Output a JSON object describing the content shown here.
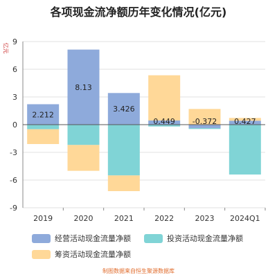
{
  "chart_data": {
    "type": "bar",
    "stacked": true,
    "title": "各项现金流净额历年变化情况(亿元)",
    "ylabel": "亿元",
    "categories": [
      "2019",
      "2020",
      "2021",
      "2022",
      "2023",
      "2024Q1"
    ],
    "ylim": [
      -9,
      9
    ],
    "yticks": [
      9,
      6,
      3,
      0,
      -3,
      -6,
      -9
    ],
    "grid": true,
    "legend_position": "bottom",
    "series": [
      {
        "name": "经营活动现金流量净额",
        "color": "#8eaadb",
        "values": [
          2.212,
          8.13,
          3.426,
          0.449,
          -0.372,
          0.427
        ],
        "labels": [
          "2.212",
          "8.13",
          "3.426",
          "0.449",
          "-0.372",
          "0.427"
        ]
      },
      {
        "name": "投资活动现金流量净额",
        "color": "#80d4d6",
        "values": [
          -0.5,
          -2.2,
          -5.5,
          -0.2,
          -0.1,
          -5.4
        ]
      },
      {
        "name": "筹资活动现金流量净额",
        "color": "#ffd898",
        "values": [
          -1.6,
          -2.8,
          -1.7,
          4.9,
          1.7,
          0.3
        ]
      }
    ],
    "footer": "制图数据来自恒生聚源数据库"
  }
}
